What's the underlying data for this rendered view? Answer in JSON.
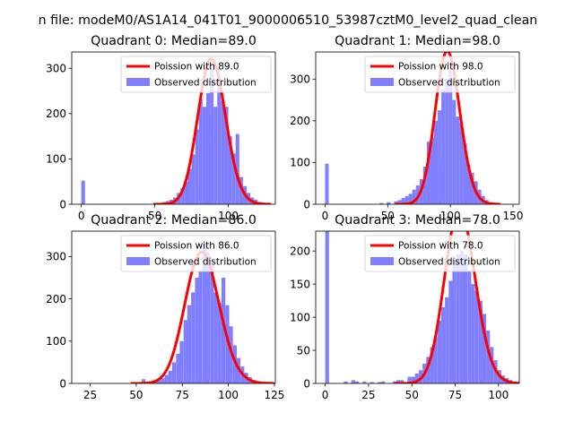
{
  "figure": {
    "suptitle": "n file: modeM0/AS1A14_041T01_9000006510_53987cztM0_level2_quad_clean"
  },
  "chart_data": [
    {
      "type": "bar",
      "title": "Quadrant 0: Median=89.0",
      "xlim": [
        -6.5,
        132
      ],
      "ylim": [
        0,
        336
      ],
      "xticks": [
        0,
        50,
        100
      ],
      "yticks": [
        0,
        100,
        200,
        300
      ],
      "legend": [
        "Poission with 89.0",
        "Observed distribution"
      ],
      "legend_position": "upper right",
      "mean": 89,
      "bin_width": 2.5,
      "bins": [
        [
          0,
          52
        ],
        [
          55,
          5
        ],
        [
          57.5,
          7
        ],
        [
          60,
          10
        ],
        [
          62.5,
          15
        ],
        [
          65,
          25
        ],
        [
          67.5,
          35
        ],
        [
          70,
          50
        ],
        [
          72.5,
          78
        ],
        [
          75,
          110
        ],
        [
          77.5,
          165
        ],
        [
          80,
          232
        ],
        [
          82.5,
          215
        ],
        [
          85,
          245
        ],
        [
          87.5,
          300
        ],
        [
          90,
          215
        ],
        [
          92.5,
          262
        ],
        [
          95,
          228
        ],
        [
          97.5,
          215
        ],
        [
          100,
          150
        ],
        [
          102.5,
          112
        ],
        [
          105,
          155
        ],
        [
          107.5,
          60
        ],
        [
          110,
          40
        ],
        [
          112.5,
          25
        ],
        [
          115,
          15
        ],
        [
          117.5,
          10
        ],
        [
          120,
          5
        ]
      ]
    },
    {
      "type": "bar",
      "title": "Quadrant 1: Median=98.0",
      "xlim": [
        -7.5,
        155
      ],
      "ylim": [
        0,
        365
      ],
      "xticks": [
        0,
        50,
        100,
        150
      ],
      "yticks": [
        0,
        100,
        200,
        300
      ],
      "legend": [
        "Poission with 98.0",
        "Observed distribution"
      ],
      "legend_position": "upper right",
      "mean": 98,
      "bin_width": 2.9,
      "bins": [
        [
          0,
          97
        ],
        [
          43.5,
          3
        ],
        [
          49.3,
          5
        ],
        [
          55.1,
          7
        ],
        [
          58,
          10
        ],
        [
          60.9,
          15
        ],
        [
          63.8,
          20
        ],
        [
          66.7,
          25
        ],
        [
          69.6,
          35
        ],
        [
          72.5,
          45
        ],
        [
          75.4,
          60
        ],
        [
          78.3,
          90
        ],
        [
          81.2,
          150
        ],
        [
          84.1,
          160
        ],
        [
          87,
          200
        ],
        [
          89.9,
          225
        ],
        [
          92.8,
          275
        ],
        [
          95.7,
          300
        ],
        [
          98.6,
          320
        ],
        [
          101.5,
          250
        ],
        [
          104.4,
          210
        ],
        [
          107.3,
          195
        ],
        [
          110.2,
          145
        ],
        [
          113.1,
          95
        ],
        [
          116,
          75
        ],
        [
          118.9,
          55
        ],
        [
          121.8,
          35
        ],
        [
          124.7,
          20
        ],
        [
          127.6,
          10
        ],
        [
          130.5,
          5
        ],
        [
          133.4,
          3
        ],
        [
          136.3,
          2
        ]
      ]
    },
    {
      "type": "bar",
      "title": "Quadrant 2: Median=86.0",
      "xlim": [
        15,
        125.5
      ],
      "ylim": [
        0,
        360
      ],
      "xticks": [
        25,
        50,
        75,
        100,
        125
      ],
      "yticks": [
        0,
        100,
        200,
        300
      ],
      "legend": [
        "Poission with 86.0",
        "Observed distribution"
      ],
      "legend_position": "upper right",
      "mean": 86,
      "bin_width": 2.06,
      "bins": [
        [
          52.9,
          10
        ],
        [
          57,
          3
        ],
        [
          59.1,
          5
        ],
        [
          61.2,
          8
        ],
        [
          63.3,
          12
        ],
        [
          65.4,
          20
        ],
        [
          67.4,
          30
        ],
        [
          69.5,
          50
        ],
        [
          71.6,
          70
        ],
        [
          73.6,
          100
        ],
        [
          75.7,
          150
        ],
        [
          77.7,
          185
        ],
        [
          79.8,
          215
        ],
        [
          81.9,
          250
        ],
        [
          83.9,
          265
        ],
        [
          86,
          330
        ],
        [
          88,
          310
        ],
        [
          90.1,
          280
        ],
        [
          92.2,
          215
        ],
        [
          94.2,
          190
        ],
        [
          96.3,
          250
        ],
        [
          98.4,
          185
        ],
        [
          100.4,
          135
        ],
        [
          102.5,
          90
        ],
        [
          104.5,
          60
        ],
        [
          106.6,
          40
        ],
        [
          108.7,
          25
        ],
        [
          110.7,
          15
        ],
        [
          112.8,
          8
        ],
        [
          114.9,
          3
        ]
      ]
    },
    {
      "type": "bar",
      "title": "Quadrant 3: Median=78.0",
      "xlim": [
        -5.5,
        112
      ],
      "ylim": [
        0,
        230
      ],
      "xticks": [
        0,
        25,
        50,
        75,
        100
      ],
      "yticks": [
        0,
        50,
        100,
        150,
        200
      ],
      "legend": [
        "Poission with 78.0",
        "Observed distribution"
      ],
      "legend_position": "upper right",
      "mean": 78,
      "bin_width": 2.16,
      "bins": [
        [
          0,
          235
        ],
        [
          10.8,
          3
        ],
        [
          15.1,
          5
        ],
        [
          17.3,
          3
        ],
        [
          21.6,
          3
        ],
        [
          25.9,
          2
        ],
        [
          30.3,
          2
        ],
        [
          32.4,
          3
        ],
        [
          38.9,
          3
        ],
        [
          41.1,
          5
        ],
        [
          43.2,
          5
        ],
        [
          47.5,
          10
        ],
        [
          49.7,
          10
        ],
        [
          51.8,
          15
        ],
        [
          54,
          20
        ],
        [
          56.2,
          30
        ],
        [
          58.3,
          40
        ],
        [
          60.5,
          55
        ],
        [
          62.6,
          70
        ],
        [
          64.8,
          95
        ],
        [
          67,
          115
        ],
        [
          69.1,
          130
        ],
        [
          71.3,
          155
        ],
        [
          73.4,
          185
        ],
        [
          75.6,
          195
        ],
        [
          77.8,
          200
        ],
        [
          79.9,
          195
        ],
        [
          82.1,
          170
        ],
        [
          84.2,
          150
        ],
        [
          86.4,
          140
        ],
        [
          88.6,
          125
        ],
        [
          90.7,
          105
        ],
        [
          92.9,
          80
        ],
        [
          95,
          55
        ],
        [
          97.2,
          35
        ],
        [
          99.4,
          20
        ],
        [
          101.5,
          12
        ],
        [
          103.7,
          8
        ],
        [
          105.8,
          5
        ]
      ]
    }
  ]
}
